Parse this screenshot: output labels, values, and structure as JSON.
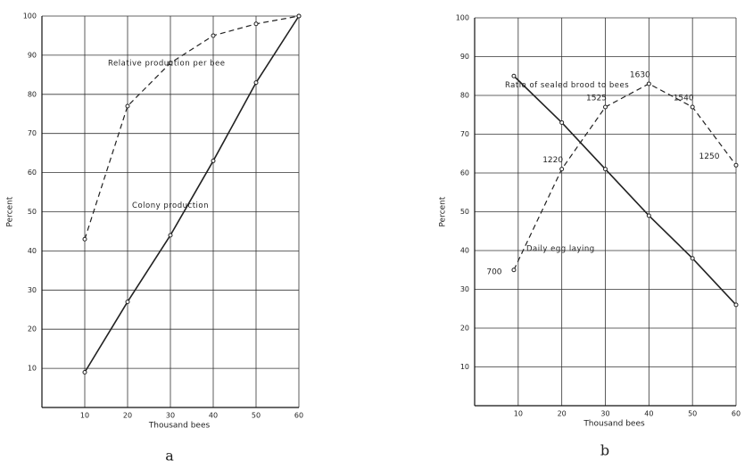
{
  "chart_data": [
    {
      "type": "line",
      "caption": "a",
      "x_label": "Thousand bees",
      "y_label": "Percent",
      "xlim": [
        0,
        60
      ],
      "ylim": [
        0,
        100
      ],
      "xticks": [
        10,
        20,
        30,
        40,
        50,
        60
      ],
      "yticks": [
        10,
        20,
        30,
        40,
        50,
        60,
        70,
        80,
        90,
        100
      ],
      "grid": true,
      "series": [
        {
          "name": "Relative production per bee",
          "color": "#222222",
          "dashed": true,
          "x": [
            10,
            20,
            30,
            40,
            50,
            60
          ],
          "values": [
            43,
            77,
            88,
            95,
            98,
            100
          ]
        },
        {
          "name": "Colony production",
          "color": "#222222",
          "dashed": false,
          "x": [
            10,
            20,
            30,
            40,
            50,
            60
          ],
          "values": [
            9,
            27,
            44,
            63,
            83,
            100
          ]
        }
      ]
    },
    {
      "type": "line",
      "caption": "b",
      "x_label": "Thousand bees",
      "y_label": "Percent",
      "xlim": [
        0,
        60
      ],
      "ylim": [
        0,
        100
      ],
      "xticks": [
        10,
        20,
        30,
        40,
        50,
        60
      ],
      "yticks": [
        10,
        20,
        30,
        40,
        50,
        60,
        70,
        80,
        90,
        100
      ],
      "grid": true,
      "series": [
        {
          "name": "Ratio of sealed brood to bees",
          "color": "#222222",
          "dashed": false,
          "x": [
            9,
            20,
            30,
            40,
            50,
            60
          ],
          "values": [
            85,
            73,
            61,
            49,
            38,
            26
          ]
        },
        {
          "name": "Daily egg laying",
          "color": "#222222",
          "dashed": true,
          "x": [
            9,
            20,
            30,
            40,
            50,
            60
          ],
          "values": [
            35,
            61,
            77,
            83,
            77,
            62
          ],
          "point_labels": [
            700,
            1220,
            1525,
            1630,
            1540,
            1250
          ]
        }
      ]
    }
  ]
}
